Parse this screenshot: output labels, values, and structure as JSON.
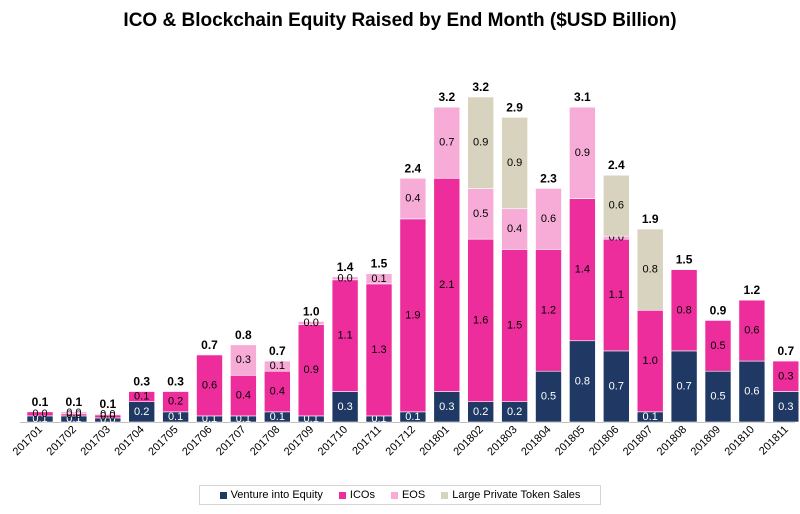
{
  "chart_data": {
    "type": "bar",
    "stacked": true,
    "title": "ICO & Blockchain Equity Raised by End Month ($USD Billion)",
    "xlabel": "",
    "ylabel": "",
    "ylim": [
      0,
      3.2
    ],
    "grid": false,
    "legend_position": "bottom",
    "categories": [
      "201701",
      "201702",
      "201703",
      "201704",
      "201705",
      "201706",
      "201707",
      "201708",
      "201709",
      "201710",
      "201711",
      "201712",
      "201801",
      "201802",
      "201803",
      "201804",
      "201805",
      "201806",
      "201807",
      "201808",
      "201809",
      "201810",
      "201811"
    ],
    "series": [
      {
        "name": "Venture into Equity",
        "color": "#1f3864",
        "label_color": "#ffffff",
        "values": [
          0.06,
          0.06,
          0.04,
          0.2,
          0.1,
          0.06,
          0.06,
          0.1,
          0.06,
          0.3,
          0.06,
          0.1,
          0.3,
          0.2,
          0.2,
          0.5,
          0.8,
          0.7,
          0.1,
          0.7,
          0.5,
          0.6,
          0.3
        ],
        "labels": [
          "0.1",
          "0.1",
          "0.0",
          "0.2",
          "0.1",
          "0.1",
          "0.1",
          "0.1",
          "0.1",
          "0.3",
          "0.1",
          "0.1",
          "0.3",
          "0.2",
          "0.2",
          "0.5",
          "0.8",
          "0.7",
          "0.1",
          "0.7",
          "0.5",
          "0.6",
          "0.3"
        ]
      },
      {
        "name": "ICOs",
        "color": "#ed2d9b",
        "label_color": "#000000",
        "values": [
          0.04,
          0.02,
          0.03,
          0.1,
          0.2,
          0.6,
          0.4,
          0.4,
          0.9,
          1.1,
          1.3,
          1.9,
          2.1,
          1.6,
          1.5,
          1.2,
          1.4,
          1.1,
          1.0,
          0.8,
          0.5,
          0.6,
          0.3
        ],
        "labels": [
          "0.0",
          "0.0",
          "0.0",
          "0.1",
          "0.2",
          "0.6",
          "0.4",
          "0.4",
          "0.9",
          "1.1",
          "1.3",
          "1.9",
          "2.1",
          "1.6",
          "1.5",
          "1.2",
          "1.4",
          "1.1",
          "1.0",
          "0.8",
          "0.5",
          "0.6",
          "0.3"
        ]
      },
      {
        "name": "EOS",
        "color": "#f7acd7",
        "label_color": "#000000",
        "values": [
          0,
          0.02,
          0.01,
          0,
          0,
          0,
          0.3,
          0.1,
          0.03,
          0.03,
          0.1,
          0.4,
          0.7,
          0.5,
          0.4,
          0.6,
          0.9,
          0.03,
          0,
          0,
          0,
          0,
          0
        ],
        "labels": [
          "",
          "0.0",
          "0.0",
          "",
          "",
          "",
          "0.3",
          "0.1",
          "0.0",
          "0.0",
          "0.1",
          "0.4",
          "0.7",
          "0.5",
          "0.4",
          "0.6",
          "0.9",
          "0.0",
          "",
          "",
          "",
          "",
          ""
        ]
      },
      {
        "name": "Large Private Token Sales",
        "color": "#d7d3bf",
        "label_color": "#000000",
        "values": [
          0,
          0,
          0,
          0,
          0,
          0,
          0,
          0,
          0,
          0,
          0,
          0,
          0,
          0.9,
          0.9,
          0,
          0,
          0.6,
          0.8,
          0,
          0,
          0,
          0
        ],
        "labels": [
          "",
          "",
          "",
          "",
          "",
          "",
          "",
          "",
          "",
          "",
          "",
          "",
          "",
          "0.9",
          "0.9",
          "",
          "",
          "0.6",
          "0.8",
          "",
          "",
          "",
          ""
        ]
      }
    ],
    "totals": [
      "0.1",
      "0.1",
      "0.1",
      "0.3",
      "0.3",
      "0.7",
      "0.8",
      "0.7",
      "1.0",
      "1.4",
      "1.5",
      "2.4",
      "3.2",
      "3.2",
      "2.9",
      "2.3",
      "3.1",
      "2.4",
      "1.9",
      "1.5",
      "0.9",
      "1.2",
      "0.7"
    ]
  }
}
